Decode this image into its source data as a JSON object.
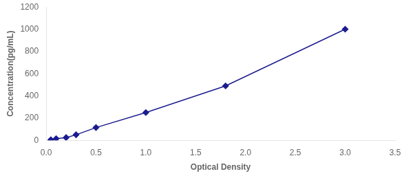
{
  "chart_data": {
    "type": "line",
    "x": [
      0.047,
      0.1,
      0.2,
      0.3,
      0.5,
      1.0,
      1.8,
      3.0
    ],
    "values": [
      5,
      15,
      25,
      50,
      115,
      250,
      490,
      1000
    ],
    "color": "#1c1c8f",
    "marker": "diamond",
    "xlabel": "Optical Density",
    "ylabel": "Concentration(pg/mL)",
    "xlim": [
      0,
      3.5
    ],
    "ylim": [
      0,
      1200
    ],
    "xticks": [
      {
        "value": 0,
        "label": "0.0"
      },
      0.5,
      {
        "value": 1.0,
        "label": "1.0"
      },
      1.5,
      {
        "value": 2.0,
        "label": "2.0"
      },
      2.5,
      {
        "value": 3.0,
        "label": "3.0"
      },
      3.5
    ],
    "yticks": [
      0,
      200,
      400,
      600,
      800,
      1000,
      1200
    ],
    "grid": false
  }
}
